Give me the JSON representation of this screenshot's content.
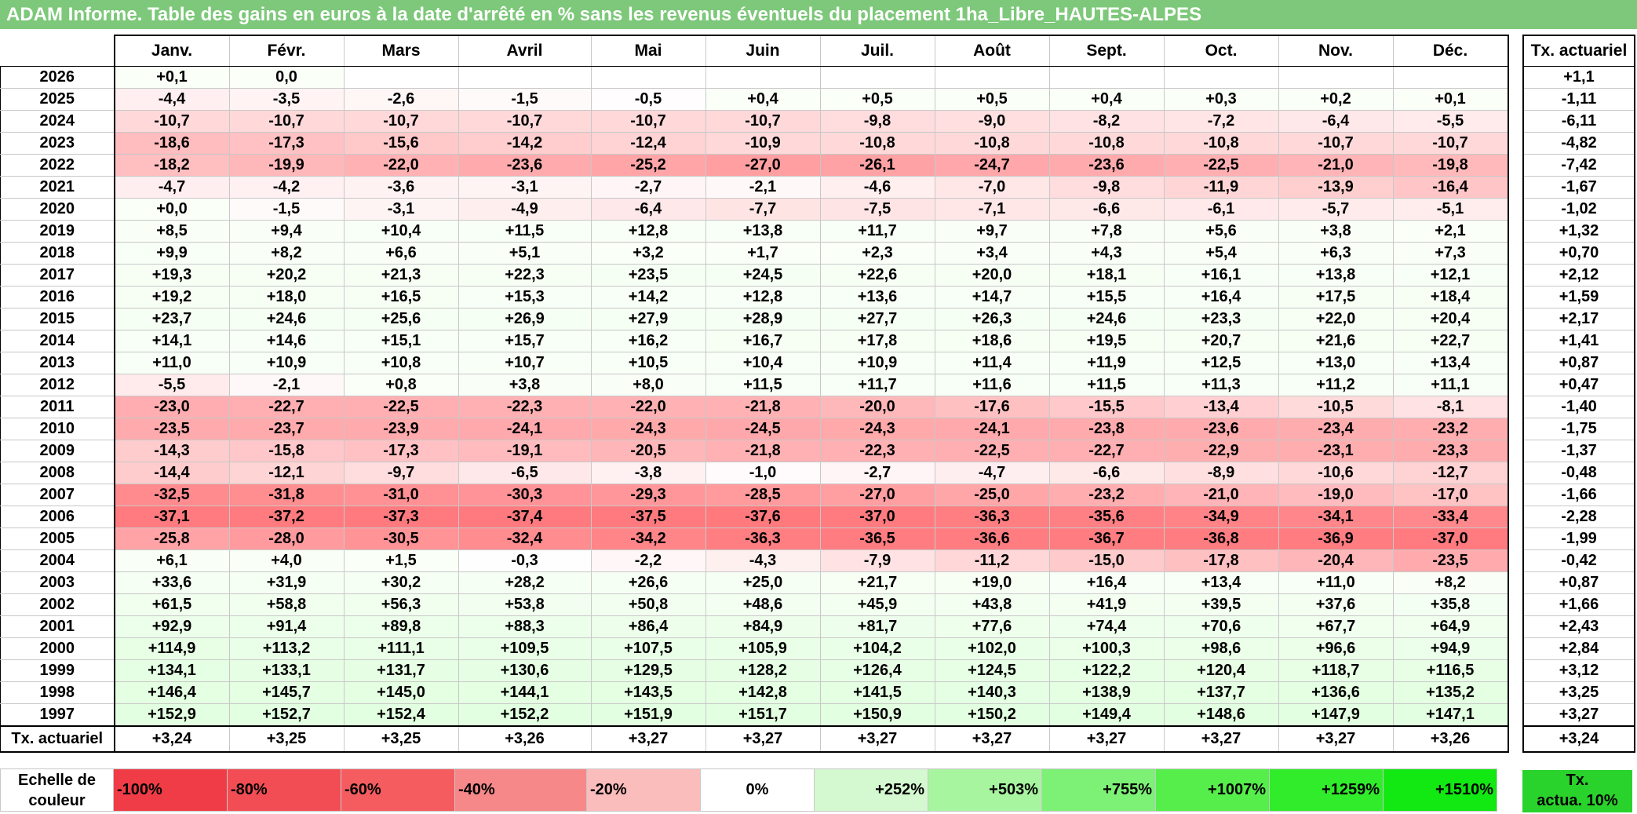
{
  "title": "ADAM Informe. Table des gains en euros à la date d'arrêté en % sans les revenus éventuels du placement 1ha_Libre_HAUTES-ALPES",
  "months": [
    "Janv.",
    "Févr.",
    "Mars",
    "Avril",
    "Mai",
    "Juin",
    "Juil.",
    "Août",
    "Sept.",
    "Oct.",
    "Nov.",
    "Déc."
  ],
  "right_header": "Tx. actuariel",
  "rows": [
    {
      "year": "2026",
      "values": [
        "+0,1",
        "0,0",
        "",
        "",
        "",
        "",
        "",
        "",
        "",
        "",
        "",
        ""
      ],
      "tx": "+1,1"
    },
    {
      "year": "2025",
      "values": [
        "-4,4",
        "-3,5",
        "-2,6",
        "-1,5",
        "-0,5",
        "+0,4",
        "+0,5",
        "+0,5",
        "+0,4",
        "+0,3",
        "+0,2",
        "+0,1"
      ],
      "tx": "-1,11"
    },
    {
      "year": "2024",
      "values": [
        "-10,7",
        "-10,7",
        "-10,7",
        "-10,7",
        "-10,7",
        "-10,7",
        "-9,8",
        "-9,0",
        "-8,2",
        "-7,2",
        "-6,4",
        "-5,5"
      ],
      "tx": "-6,11"
    },
    {
      "year": "2023",
      "values": [
        "-18,6",
        "-17,3",
        "-15,6",
        "-14,2",
        "-12,4",
        "-10,9",
        "-10,8",
        "-10,8",
        "-10,8",
        "-10,8",
        "-10,7",
        "-10,7"
      ],
      "tx": "-4,82"
    },
    {
      "year": "2022",
      "values": [
        "-18,2",
        "-19,9",
        "-22,0",
        "-23,6",
        "-25,2",
        "-27,0",
        "-26,1",
        "-24,7",
        "-23,6",
        "-22,5",
        "-21,0",
        "-19,8"
      ],
      "tx": "-7,42"
    },
    {
      "year": "2021",
      "values": [
        "-4,7",
        "-4,2",
        "-3,6",
        "-3,1",
        "-2,7",
        "-2,1",
        "-4,6",
        "-7,0",
        "-9,8",
        "-11,9",
        "-13,9",
        "-16,4"
      ],
      "tx": "-1,67"
    },
    {
      "year": "2020",
      "values": [
        "+0,0",
        "-1,5",
        "-3,1",
        "-4,9",
        "-6,4",
        "-7,7",
        "-7,5",
        "-7,1",
        "-6,6",
        "-6,1",
        "-5,7",
        "-5,1"
      ],
      "tx": "-1,02"
    },
    {
      "year": "2019",
      "values": [
        "+8,5",
        "+9,4",
        "+10,4",
        "+11,5",
        "+12,8",
        "+13,8",
        "+11,7",
        "+9,7",
        "+7,8",
        "+5,6",
        "+3,8",
        "+2,1"
      ],
      "tx": "+1,32"
    },
    {
      "year": "2018",
      "values": [
        "+9,9",
        "+8,2",
        "+6,6",
        "+5,1",
        "+3,2",
        "+1,7",
        "+2,3",
        "+3,4",
        "+4,3",
        "+5,4",
        "+6,3",
        "+7,3"
      ],
      "tx": "+0,70"
    },
    {
      "year": "2017",
      "values": [
        "+19,3",
        "+20,2",
        "+21,3",
        "+22,3",
        "+23,5",
        "+24,5",
        "+22,6",
        "+20,0",
        "+18,1",
        "+16,1",
        "+13,8",
        "+12,1"
      ],
      "tx": "+2,12"
    },
    {
      "year": "2016",
      "values": [
        "+19,2",
        "+18,0",
        "+16,5",
        "+15,3",
        "+14,2",
        "+12,8",
        "+13,6",
        "+14,7",
        "+15,5",
        "+16,4",
        "+17,5",
        "+18,4"
      ],
      "tx": "+1,59"
    },
    {
      "year": "2015",
      "values": [
        "+23,7",
        "+24,6",
        "+25,6",
        "+26,9",
        "+27,9",
        "+28,9",
        "+27,7",
        "+26,3",
        "+24,6",
        "+23,3",
        "+22,0",
        "+20,4"
      ],
      "tx": "+2,17"
    },
    {
      "year": "2014",
      "values": [
        "+14,1",
        "+14,6",
        "+15,1",
        "+15,7",
        "+16,2",
        "+16,7",
        "+17,8",
        "+18,6",
        "+19,5",
        "+20,7",
        "+21,6",
        "+22,7"
      ],
      "tx": "+1,41"
    },
    {
      "year": "2013",
      "values": [
        "+11,0",
        "+10,9",
        "+10,8",
        "+10,7",
        "+10,5",
        "+10,4",
        "+10,9",
        "+11,4",
        "+11,9",
        "+12,5",
        "+13,0",
        "+13,4"
      ],
      "tx": "+0,87"
    },
    {
      "year": "2012",
      "values": [
        "-5,5",
        "-2,1",
        "+0,8",
        "+3,8",
        "+8,0",
        "+11,5",
        "+11,7",
        "+11,6",
        "+11,5",
        "+11,3",
        "+11,2",
        "+11,1"
      ],
      "tx": "+0,47"
    },
    {
      "year": "2011",
      "values": [
        "-23,0",
        "-22,7",
        "-22,5",
        "-22,3",
        "-22,0",
        "-21,8",
        "-20,0",
        "-17,6",
        "-15,5",
        "-13,4",
        "-10,5",
        "-8,1"
      ],
      "tx": "-1,40"
    },
    {
      "year": "2010",
      "values": [
        "-23,5",
        "-23,7",
        "-23,9",
        "-24,1",
        "-24,3",
        "-24,5",
        "-24,3",
        "-24,1",
        "-23,8",
        "-23,6",
        "-23,4",
        "-23,2"
      ],
      "tx": "-1,75"
    },
    {
      "year": "2009",
      "values": [
        "-14,3",
        "-15,8",
        "-17,3",
        "-19,1",
        "-20,5",
        "-21,8",
        "-22,3",
        "-22,5",
        "-22,7",
        "-22,9",
        "-23,1",
        "-23,3"
      ],
      "tx": "-1,37"
    },
    {
      "year": "2008",
      "values": [
        "-14,4",
        "-12,1",
        "-9,7",
        "-6,5",
        "-3,8",
        "-1,0",
        "-2,7",
        "-4,7",
        "-6,6",
        "-8,9",
        "-10,6",
        "-12,7"
      ],
      "tx": "-0,48"
    },
    {
      "year": "2007",
      "values": [
        "-32,5",
        "-31,8",
        "-31,0",
        "-30,3",
        "-29,3",
        "-28,5",
        "-27,0",
        "-25,0",
        "-23,2",
        "-21,0",
        "-19,0",
        "-17,0"
      ],
      "tx": "-1,66"
    },
    {
      "year": "2006",
      "values": [
        "-37,1",
        "-37,2",
        "-37,3",
        "-37,4",
        "-37,5",
        "-37,6",
        "-37,0",
        "-36,3",
        "-35,6",
        "-34,9",
        "-34,1",
        "-33,4"
      ],
      "tx": "-2,28"
    },
    {
      "year": "2005",
      "values": [
        "-25,8",
        "-28,0",
        "-30,5",
        "-32,4",
        "-34,2",
        "-36,3",
        "-36,5",
        "-36,6",
        "-36,7",
        "-36,8",
        "-36,9",
        "-37,0"
      ],
      "tx": "-1,99"
    },
    {
      "year": "2004",
      "values": [
        "+6,1",
        "+4,0",
        "+1,5",
        "-0,3",
        "-2,2",
        "-4,3",
        "-7,9",
        "-11,2",
        "-15,0",
        "-17,8",
        "-20,4",
        "-23,5"
      ],
      "tx": "-0,42"
    },
    {
      "year": "2003",
      "values": [
        "+33,6",
        "+31,9",
        "+30,2",
        "+28,2",
        "+26,6",
        "+25,0",
        "+21,7",
        "+19,0",
        "+16,4",
        "+13,4",
        "+11,0",
        "+8,2"
      ],
      "tx": "+0,87"
    },
    {
      "year": "2002",
      "values": [
        "+61,5",
        "+58,8",
        "+56,3",
        "+53,8",
        "+50,8",
        "+48,6",
        "+45,9",
        "+43,8",
        "+41,9",
        "+39,5",
        "+37,6",
        "+35,8"
      ],
      "tx": "+1,66"
    },
    {
      "year": "2001",
      "values": [
        "+92,9",
        "+91,4",
        "+89,8",
        "+88,3",
        "+86,4",
        "+84,9",
        "+81,7",
        "+77,6",
        "+74,4",
        "+70,6",
        "+67,7",
        "+64,9"
      ],
      "tx": "+2,43"
    },
    {
      "year": "2000",
      "values": [
        "+114,9",
        "+113,2",
        "+111,1",
        "+109,5",
        "+107,5",
        "+105,9",
        "+104,2",
        "+102,0",
        "+100,3",
        "+98,6",
        "+96,6",
        "+94,9"
      ],
      "tx": "+2,84"
    },
    {
      "year": "1999",
      "values": [
        "+134,1",
        "+133,1",
        "+131,7",
        "+130,6",
        "+129,5",
        "+128,2",
        "+126,4",
        "+124,5",
        "+122,2",
        "+120,4",
        "+118,7",
        "+116,5"
      ],
      "tx": "+3,12"
    },
    {
      "year": "1998",
      "values": [
        "+146,4",
        "+145,7",
        "+145,0",
        "+144,1",
        "+143,5",
        "+142,8",
        "+141,5",
        "+140,3",
        "+138,9",
        "+137,7",
        "+136,6",
        "+135,2"
      ],
      "tx": "+3,25"
    },
    {
      "year": "1997",
      "values": [
        "+152,9",
        "+152,7",
        "+152,4",
        "+152,2",
        "+151,9",
        "+151,7",
        "+150,9",
        "+150,2",
        "+149,4",
        "+148,6",
        "+147,9",
        "+147,1"
      ],
      "tx": "+3,27"
    }
  ],
  "tx_row": {
    "label": "Tx. actuariel",
    "values": [
      "+3,24",
      "+3,25",
      "+3,25",
      "+3,26",
      "+3,27",
      "+3,27",
      "+3,27",
      "+3,27",
      "+3,27",
      "+3,27",
      "+3,27",
      "+3,26"
    ],
    "tx": "+3,24"
  },
  "scale": {
    "label_line1": "Echelle de",
    "label_line2": "couleur",
    "items": [
      {
        "text": "-100%",
        "color": "#f03c46",
        "align": "left"
      },
      {
        "text": "-80%",
        "color": "#f24d54",
        "align": "left"
      },
      {
        "text": "-60%",
        "color": "#f45c60",
        "align": "left"
      },
      {
        "text": "-40%",
        "color": "#f7888a",
        "align": "left"
      },
      {
        "text": "-20%",
        "color": "#fbbcbc",
        "align": "left"
      },
      {
        "text": "0%",
        "color": "#ffffff",
        "align": "center"
      },
      {
        "text": "+252%",
        "color": "#d4f8cf",
        "align": "right"
      },
      {
        "text": "+503%",
        "color": "#a8f5a0",
        "align": "right"
      },
      {
        "text": "+755%",
        "color": "#7df175",
        "align": "right"
      },
      {
        "text": "+1007%",
        "color": "#55ee4a",
        "align": "right"
      },
      {
        "text": "+1259%",
        "color": "#30ec2a",
        "align": "right"
      },
      {
        "text": "+1510%",
        "color": "#12e812",
        "align": "right"
      }
    ],
    "tx_line1": "Tx.",
    "tx_line2": "actua. 10%"
  }
}
